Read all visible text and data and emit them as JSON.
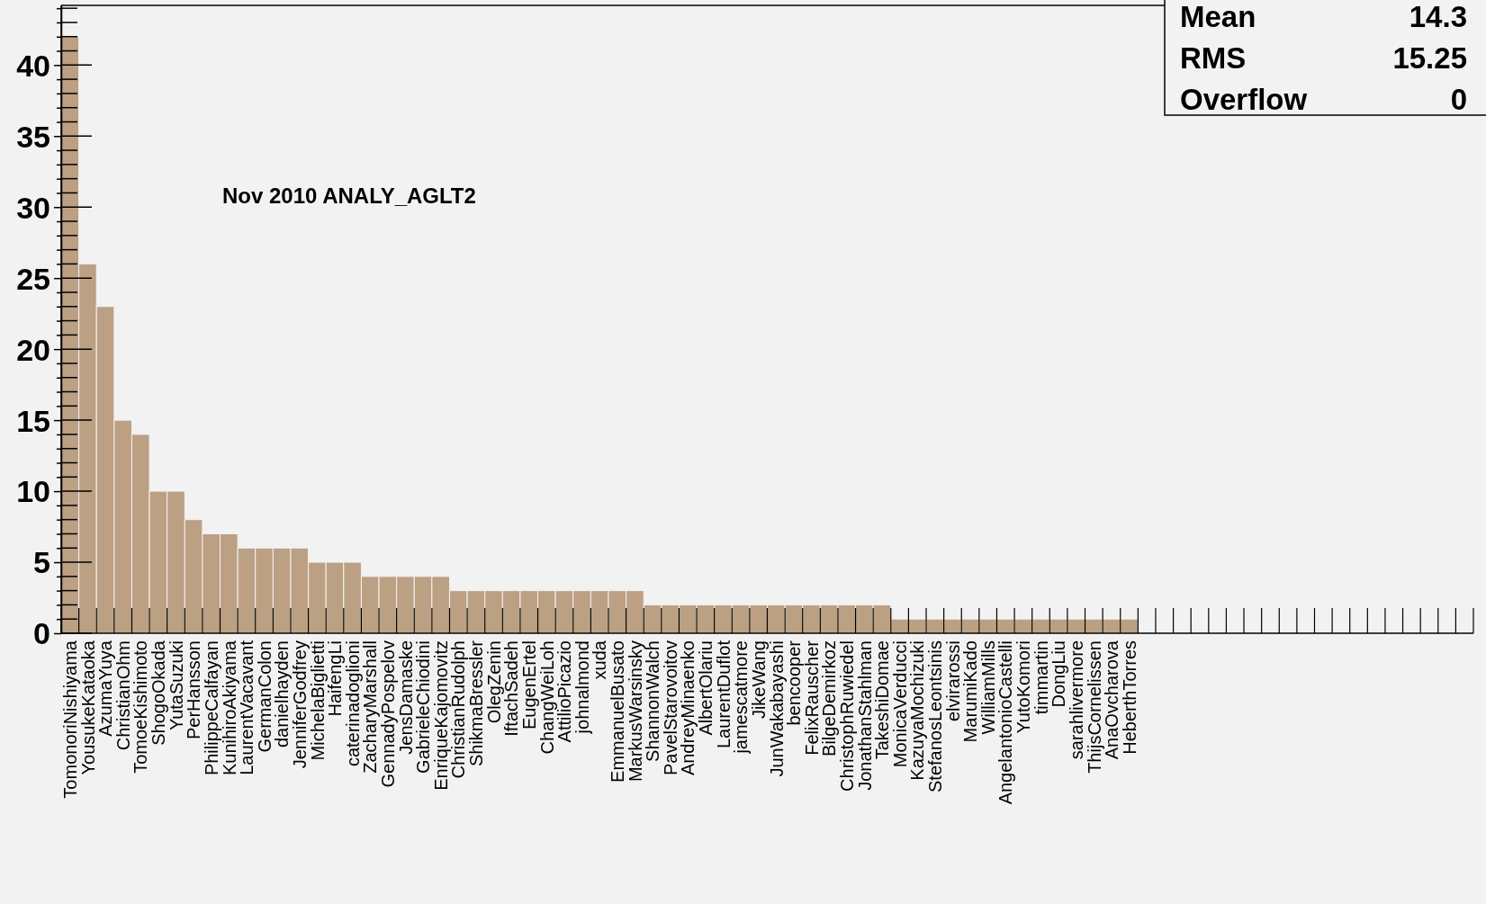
{
  "chart_data": {
    "type": "bar",
    "title": "Nov 2010 ANALY_AGLT2",
    "categories": [
      "TomonoriNishiyama",
      "YousukeKataoka",
      "AzumaYuya",
      "ChristianOhm",
      "TomoeKishimoto",
      "ShogoOkada",
      "YutaSuzuki",
      "PerHansson",
      "PhilippeCalfayan",
      "KunihiroAkiyama",
      "LaurentVacavant",
      "GermanColon",
      "danielhayden",
      "JenniferGodfrey",
      "MichelaBiglietti",
      "HaifengLi",
      "caterinadoglioni",
      "ZacharyMarshall",
      "GennadyPospelov",
      "JensDamaske",
      "GabrieleChiodini",
      "EnriqueKajomovitz",
      "ChristianRudolph",
      "ShikmaBressler",
      "OlegZenin",
      "IftachSadeh",
      "EugenErtel",
      "ChangWeiLoh",
      "AttilioPicazio",
      "johnalmond",
      "xuda",
      "EmmanuelBusato",
      "MarkusWarsinsky",
      "ShannonWalch",
      "PavelStarovoitov",
      "AndreyMinaenko",
      "AlbertOlariu",
      "LaurentDuflot",
      "jamescatmore",
      "JikeWang",
      "JunWakabayashi",
      "bencooper",
      "FelixRauscher",
      "BilgeDemirkoz",
      "ChristophRuwiedel",
      "JonathanStahlman",
      "TakeshiDomae",
      "MonicaVerducci",
      "KazuyaMochizuki",
      "StefanosLeontsinis",
      "elvirarossi",
      "MarumiKado",
      "WilliamMills",
      "AngelantonioCastelli",
      "YutoKomori",
      "timmartin",
      "DongLiu",
      "sarahlivermore",
      "ThijsCornelissen",
      "AnaOvcharova",
      "HeberthTorres",
      null,
      null,
      null,
      null,
      null,
      null,
      null,
      null,
      null,
      null,
      null,
      null,
      null,
      null,
      null,
      null,
      null,
      null,
      null
    ],
    "values": [
      42,
      26,
      23,
      15,
      14,
      10,
      10,
      8,
      7,
      7,
      6,
      6,
      6,
      6,
      5,
      5,
      5,
      4,
      4,
      4,
      4,
      4,
      3,
      3,
      3,
      3,
      3,
      3,
      3,
      3,
      3,
      3,
      3,
      2,
      2,
      2,
      2,
      2,
      2,
      2,
      2,
      2,
      2,
      2,
      2,
      2,
      2,
      1,
      1,
      1,
      1,
      1,
      1,
      1,
      1,
      1,
      1,
      1,
      1,
      1,
      1,
      0,
      0,
      0,
      0,
      0,
      0,
      0,
      0,
      0,
      0,
      0,
      0,
      0,
      0,
      0,
      0,
      0,
      0,
      0
    ],
    "color": "#bca083",
    "ylim": [
      0,
      44.2
    ],
    "yticks": [
      0,
      {
        "value": 1,
        "label": null
      },
      {
        "value": 2,
        "label": null
      },
      {
        "value": 3,
        "label": null
      },
      {
        "value": 4,
        "label": null
      },
      5,
      {
        "value": 6,
        "label": null
      },
      {
        "value": 7,
        "label": null
      },
      {
        "value": 8,
        "label": null
      },
      {
        "value": 9,
        "label": null
      },
      10,
      {
        "value": 11,
        "label": null
      },
      {
        "value": 12,
        "label": null
      },
      {
        "value": 13,
        "label": null
      },
      {
        "value": 14,
        "label": null
      },
      15,
      {
        "value": 16,
        "label": null
      },
      {
        "value": 17,
        "label": null
      },
      {
        "value": 18,
        "label": null
      },
      {
        "value": 19,
        "label": null
      },
      20,
      {
        "value": 21,
        "label": null
      },
      {
        "value": 22,
        "label": null
      },
      {
        "value": 23,
        "label": null
      },
      {
        "value": 24,
        "label": null
      },
      25,
      {
        "value": 26,
        "label": null
      },
      {
        "value": 27,
        "label": null
      },
      {
        "value": 28,
        "label": null
      },
      {
        "value": 29,
        "label": null
      },
      30,
      {
        "value": 31,
        "label": null
      },
      {
        "value": 32,
        "label": null
      },
      {
        "value": 33,
        "label": null
      },
      {
        "value": 34,
        "label": null
      },
      35,
      {
        "value": 36,
        "label": null
      },
      {
        "value": 37,
        "label": null
      },
      {
        "value": 38,
        "label": null
      },
      {
        "value": 39,
        "label": null
      },
      40,
      {
        "value": 41,
        "label": null
      },
      {
        "value": 42,
        "label": null
      },
      {
        "value": 43,
        "label": null
      },
      {
        "value": 44,
        "label": null
      }
    ],
    "annotations": [
      "Mean 14.3",
      "RMS 15.25",
      "Overflow 0"
    ],
    "grid": false
  }
}
